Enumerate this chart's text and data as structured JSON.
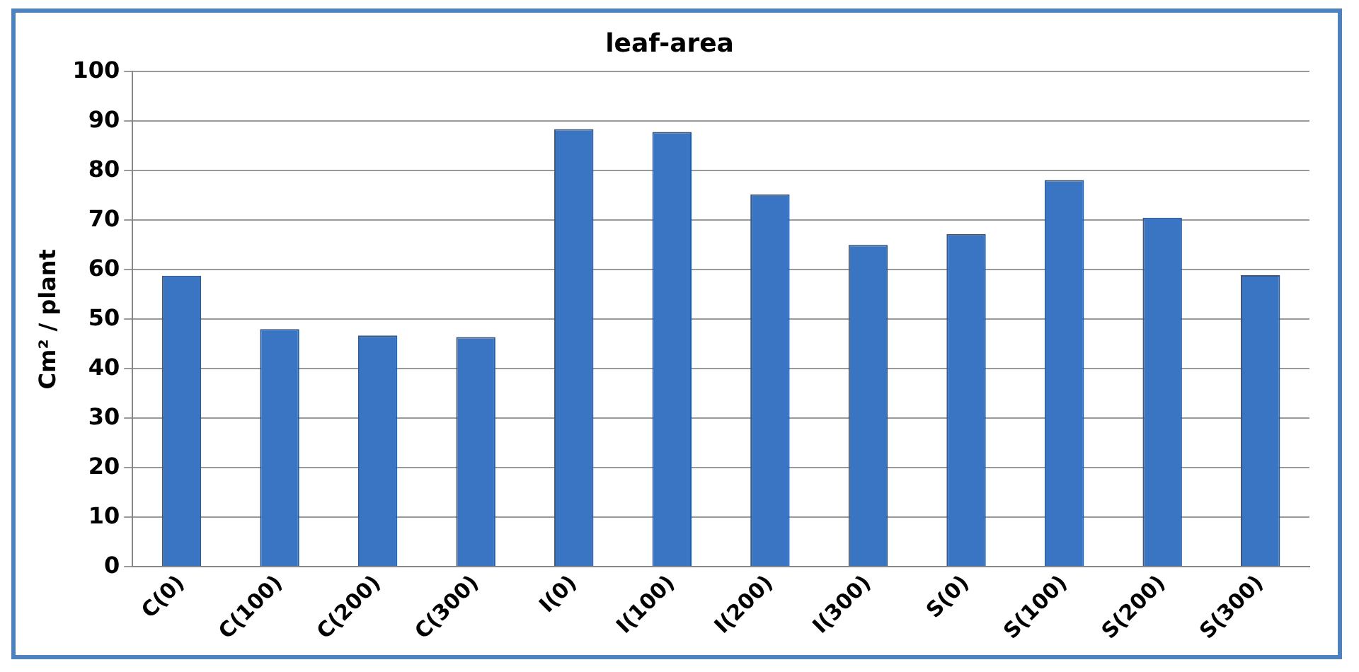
{
  "chart_data": {
    "type": "bar",
    "title": "leaf-area",
    "ylabel": "Cm² / plant",
    "categories": [
      "C(0)",
      "C(100)",
      "C(200)",
      "C(300)",
      "I(0)",
      "I(100)",
      "I(200)",
      "I(300)",
      "S(0)",
      "S(100)",
      "S(200)",
      "S(300)"
    ],
    "values": [
      58.8,
      48,
      46.7,
      46.4,
      88.4,
      87.8,
      75.2,
      65,
      67.2,
      78.1,
      70.5,
      58.9
    ],
    "color": "#3a75c4",
    "ylim": [
      0,
      100
    ],
    "yticks": [
      0,
      10,
      20,
      30,
      40,
      50,
      60,
      70,
      80,
      90,
      100
    ],
    "grid": "y",
    "legend": false
  }
}
